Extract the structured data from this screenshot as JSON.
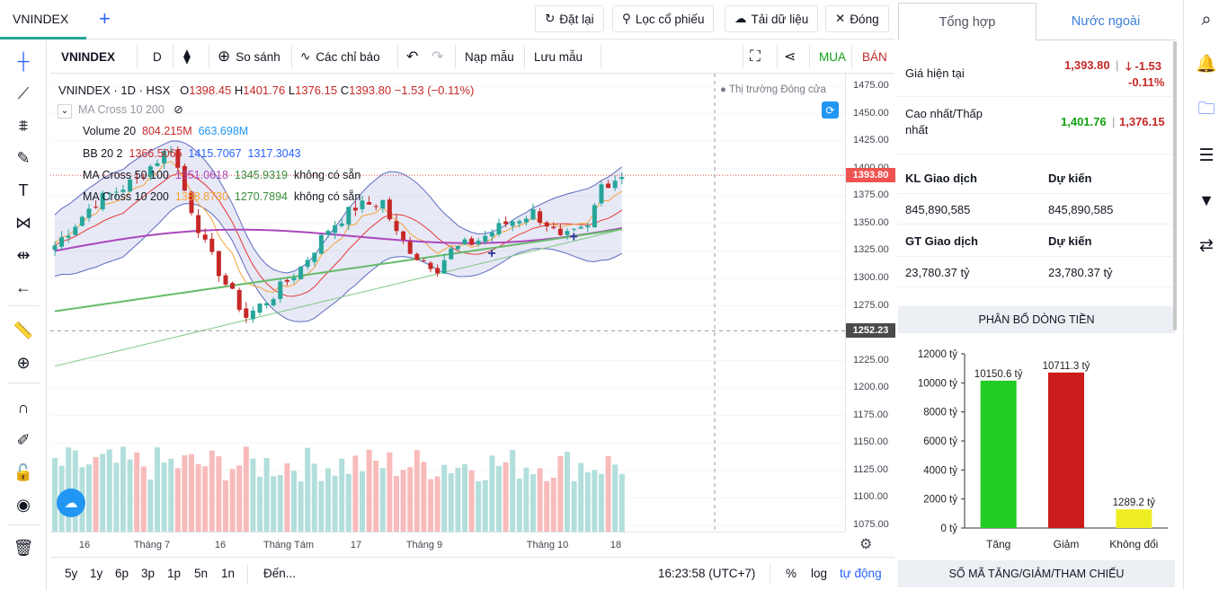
{
  "top": {
    "tab_label": "VNINDEX",
    "buttons": {
      "reset": "Đặt lại",
      "filter": "Lọc cổ phiếu",
      "download": "Tải dữ liệu",
      "close": "Đóng"
    }
  },
  "toolbar": {
    "symbol": "VNINDEX",
    "interval": "D",
    "compare": "So sánh",
    "indicators": "Các chỉ báo",
    "load_template": "Nạp mẫu",
    "save_template": "Lưu mẫu",
    "buy": "MUA",
    "sell": "BÁN"
  },
  "legend": {
    "title": "VNINDEX · 1D · HSX",
    "o_label": "O",
    "o": "1398.45",
    "h_label": "H",
    "h": "1401.76",
    "l_label": "L",
    "l": "1376.15",
    "c_label": "C",
    "c": "1393.80",
    "change": "−1.53 (−0.11%)",
    "market_status": "Thị trường Đóng cửa",
    "hidden_ind": "MA Cross 10 200",
    "vol_name": "Volume 20",
    "vol_v1": "804.215M",
    "vol_v2": "663.698M",
    "bb_name": "BB 20 2",
    "bb_v1": "1366.5065",
    "bb_v2": "1415.7067",
    "bb_v3": "1317.3043",
    "mac50_name": "MA Cross 50 100",
    "mac50_v1": "1351.0618",
    "mac50_v2": "1345.9319",
    "mac50_v3": "không có sẵn",
    "mac10_name": "MA Cross 10 200",
    "mac10_v1": "1388.8730",
    "mac10_v2": "1270.7894",
    "mac10_v3": "không có sẵn"
  },
  "price_axis": {
    "ticks": [
      "1475.00",
      "1450.00",
      "1425.00",
      "1400.00",
      "1375.00",
      "1350.00",
      "1325.00",
      "1300.00",
      "1275.00",
      "1250.00",
      "1225.00",
      "1200.00",
      "1175.00",
      "1150.00",
      "1125.00",
      "1100.00",
      "1075.00"
    ],
    "last_price": "1393.80",
    "crosshair_price": "1252.23"
  },
  "time_axis": {
    "ticks": [
      "16",
      "Tháng 7",
      "16",
      "Tháng Tám",
      "17",
      "Tháng 9",
      "Tháng 10",
      "18"
    ]
  },
  "bottom": {
    "ranges": [
      "5y",
      "1y",
      "6p",
      "3p",
      "1p",
      "5n",
      "1n"
    ],
    "goto": "Đến...",
    "clock": "16:23:58 (UTC+7)",
    "percent": "%",
    "log": "log",
    "auto": "tự động"
  },
  "panel": {
    "tabs": [
      "Tổng hợp",
      "Nước ngoài"
    ],
    "current_price_label": "Giá hiện tại",
    "current_price": "1,393.80",
    "change": "-1.53",
    "change_pct": "-0.11%",
    "high_low_label": "Cao nhất/Thấp nhất",
    "high": "1,401.76",
    "low": "1,376.15",
    "vol_label": "KL Giao dịch",
    "vol_forecast_label": "Dự kiến",
    "vol": "845,890,585",
    "vol_forecast": "845,890,585",
    "val_label": "GT Giao dịch",
    "val_forecast_label": "Dự kiến",
    "val": "23,780.37 tỷ",
    "val_forecast": "23,780.37 tỷ",
    "flow_header": "PHÂN BỔ DÒNG TIỀN",
    "count_header": "SỐ MÃ TĂNG/GIẢM/THAM CHIẾU"
  },
  "chart_data": {
    "type": "bar",
    "categories": [
      "Tăng",
      "Giảm",
      "Không đổi"
    ],
    "values": [
      10150.6,
      10711.3,
      1289.2
    ],
    "value_labels": [
      "10150.6 tỷ",
      "10711.3 tỷ",
      "1289.2 tỷ"
    ],
    "yticks": [
      "0 tỷ",
      "2000 tỷ",
      "4000 tỷ",
      "6000 tỷ",
      "8000 tỷ",
      "10000 tỷ",
      "12000 tỷ"
    ],
    "ylim": [
      0,
      12000
    ],
    "colors": [
      "#22cc22",
      "#cc1c1c",
      "#eeee22"
    ]
  },
  "colors": {
    "up": "#26a69a",
    "down": "#c62828",
    "accent": "#2962ff",
    "bb_fill": "#c5cae9"
  }
}
